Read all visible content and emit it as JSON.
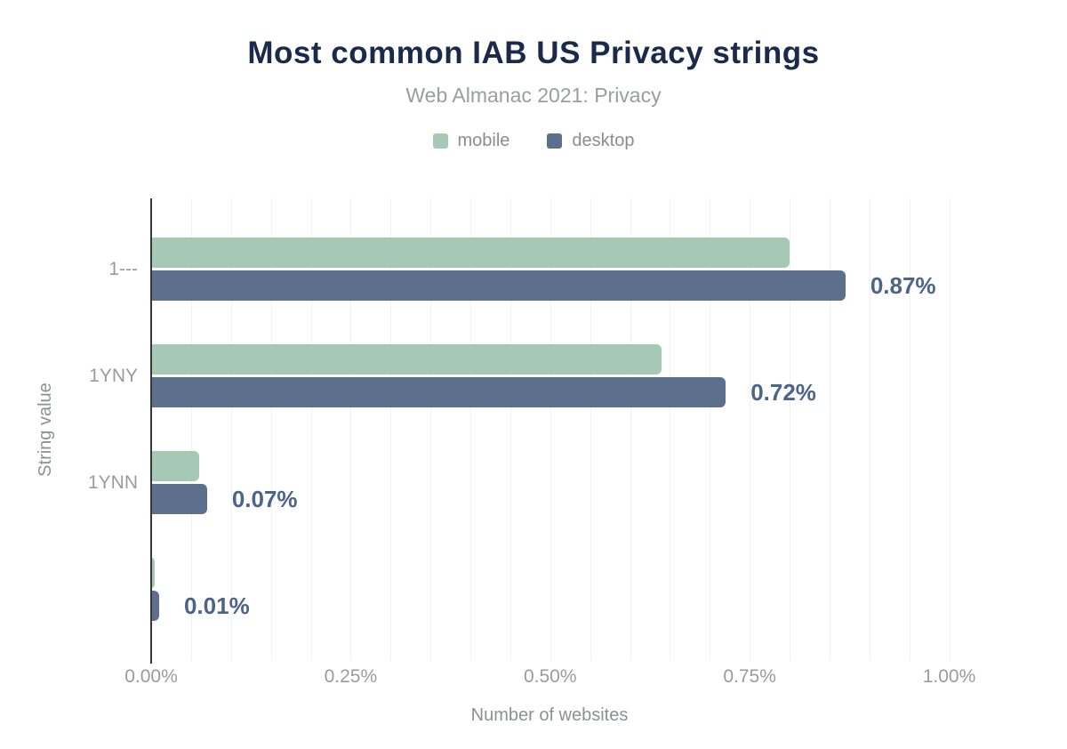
{
  "header": {
    "title": "Most common IAB US Privacy strings",
    "subtitle": "Web Almanac 2021: Privacy"
  },
  "chart_data": {
    "type": "bar",
    "orientation": "horizontal",
    "title": "Most common IAB US Privacy strings",
    "subtitle": "Web Almanac 2021: Privacy",
    "categories": [
      "1---",
      "1YNY",
      "1YNN",
      ""
    ],
    "series": [
      {
        "name": "mobile",
        "color": "#a6c9b5",
        "values": [
          0.8,
          0.64,
          0.06,
          0.005
        ]
      },
      {
        "name": "desktop",
        "color": "#5c6f8d",
        "values": [
          0.87,
          0.72,
          0.07,
          0.01
        ]
      }
    ],
    "data_labels": {
      "labeled_series": "desktop",
      "values": [
        "0.87%",
        "0.72%",
        "0.07%",
        "0.01%"
      ]
    },
    "xlabel": "Number of websites",
    "ylabel": "String value",
    "x_ticks": [
      "0.00%",
      "0.25%",
      "0.50%",
      "0.75%",
      "1.00%"
    ],
    "xlim": [
      0,
      1.0
    ],
    "x_tick_interval": 0.25,
    "x_grid_interval": 0.05,
    "grid": true,
    "legend_position": "top",
    "value_unit": "%"
  },
  "colors": {
    "title": "#1b2a4b",
    "subtitle": "#9a9da1",
    "axis_line": "#37383a",
    "gridline": "#f2f2f2",
    "tick_label": "#9b9b9b",
    "data_label": "#4d6489",
    "mobile": "#a6c9b5",
    "desktop": "#5c6f8d"
  }
}
